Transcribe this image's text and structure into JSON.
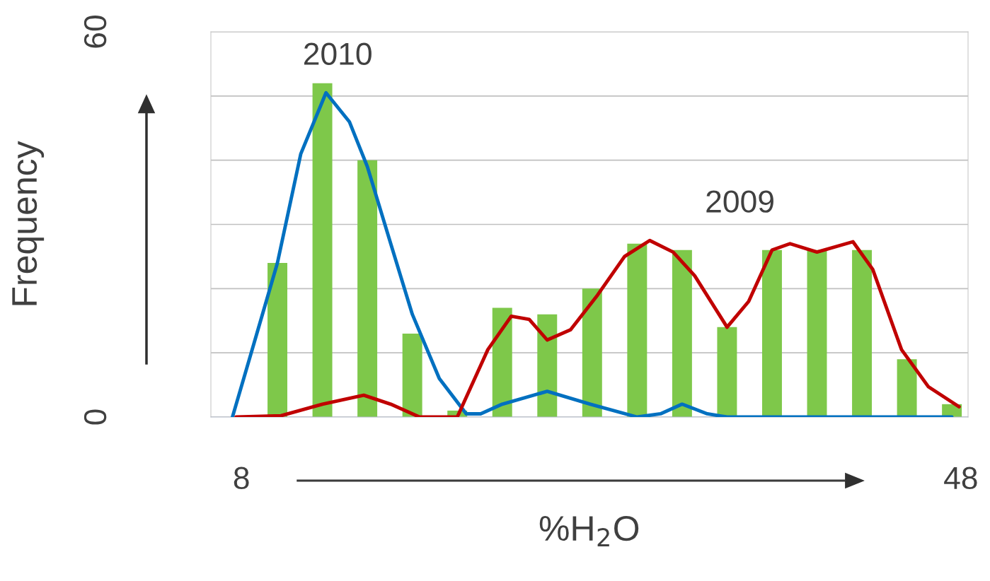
{
  "chart_data": {
    "type": "bar",
    "xlabel": "%H$_{2}$O",
    "ylabel": "Frequency",
    "xlim": [
      6.3,
      48.4
    ],
    "xticks": [
      8,
      48
    ],
    "ylim": [
      0,
      60
    ],
    "yticks": [
      0,
      {
        "value": 10,
        "label": null
      },
      {
        "value": 20,
        "label": null
      },
      {
        "value": 30,
        "label": null
      },
      {
        "value": 40,
        "label": null
      },
      {
        "value": 50,
        "label": null
      },
      60
    ],
    "grid": "y",
    "series": [
      {
        "color": "#7ec84a",
        "x": [
          10,
          12.5,
          15,
          17.5,
          20,
          22.5,
          25,
          27.5,
          30,
          32.5,
          35,
          37.5,
          40,
          42.5,
          45,
          47.5
        ],
        "values": [
          24,
          52,
          40,
          13,
          1,
          17,
          16,
          20,
          27,
          26,
          14,
          26,
          26,
          26,
          9,
          2
        ]
      },
      {
        "type": "line",
        "name": "2010",
        "color": "#0070c0",
        "x": [
          7.5,
          8.7,
          10,
          11.3,
          12.7,
          14,
          15,
          16.3,
          17.5,
          19,
          20.5,
          21.3,
          22.5,
          25,
          27.4,
          30,
          31.3,
          32.5,
          33.9,
          35,
          47.5
        ],
        "values": [
          0,
          11.5,
          24,
          41,
          50.5,
          46,
          39,
          27,
          16,
          6,
          0.5,
          0.5,
          2,
          4,
          2,
          0,
          0.5,
          2,
          0.5,
          0,
          0
        ]
      },
      {
        "type": "line",
        "name": "2009",
        "color": "#c00000",
        "x": [
          7.7,
          10.2,
          12.5,
          14.8,
          16.3,
          17.9,
          20,
          21.7,
          23,
          24,
          25,
          26.3,
          27.8,
          29.3,
          30.7,
          32,
          33.2,
          35,
          36.2,
          37.5,
          38.5,
          40,
          42,
          43.1,
          44.7,
          46.2,
          47.9
        ],
        "values": [
          0,
          0.2,
          2,
          3.4,
          2,
          0,
          0,
          10.5,
          15.7,
          15.2,
          12,
          13.6,
          19,
          25,
          27.5,
          25.7,
          22,
          14,
          18,
          26,
          27,
          25.7,
          27.3,
          23,
          10.5,
          4.7,
          1.6
        ]
      }
    ]
  }
}
